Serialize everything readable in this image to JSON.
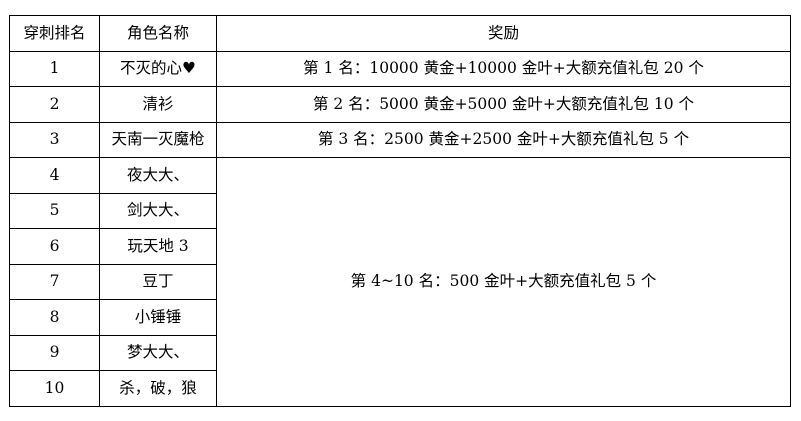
{
  "table": {
    "headers": [
      "穿刺排名",
      "角色名称",
      "奖励"
    ],
    "rows": [
      {
        "rank": "1",
        "name": "不灭的心♥",
        "reward": "第 1 名：10000 黄金+10000 金叶+大额充值礼包 20 个"
      },
      {
        "rank": "2",
        "name": "清衫",
        "reward": "第 2 名：5000 黄金+5000 金叶+大额充值礼包 10 个"
      },
      {
        "rank": "3",
        "name": "天南一灭魔枪",
        "reward": "第 3 名：2500 黄金+2500 金叶+大额充值礼包 5 个"
      },
      {
        "rank": "4",
        "name": "夜大大、"
      },
      {
        "rank": "5",
        "name": "剑大大、"
      },
      {
        "rank": "6",
        "name": "玩天地 3"
      },
      {
        "rank": "7",
        "name": "豆丁"
      },
      {
        "rank": "8",
        "name": "小锤锤"
      },
      {
        "rank": "9",
        "name": "梦大大、"
      },
      {
        "rank": "10",
        "name": "杀，破，狼"
      }
    ],
    "merged_reward": "第 4~10 名：500 金叶+大额充值礼包 5 个"
  }
}
